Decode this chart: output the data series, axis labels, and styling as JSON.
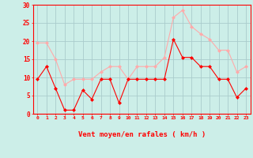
{
  "x": [
    0,
    1,
    2,
    3,
    4,
    5,
    6,
    7,
    8,
    9,
    10,
    11,
    12,
    13,
    14,
    15,
    16,
    17,
    18,
    19,
    20,
    21,
    22,
    23
  ],
  "wind_avg": [
    9.5,
    13,
    7,
    1,
    1,
    6.5,
    4,
    9.5,
    9.5,
    3,
    9.5,
    9.5,
    9.5,
    9.5,
    9.5,
    20.5,
    15.5,
    15.5,
    13,
    13,
    9.5,
    9.5,
    4.5,
    7
  ],
  "wind_gust": [
    19.5,
    19.5,
    15,
    8,
    9.5,
    9.5,
    9.5,
    11.5,
    13,
    13,
    9.5,
    13,
    13,
    13,
    15.5,
    26.5,
    28.5,
    24,
    22,
    20.5,
    17.5,
    17.5,
    11.5,
    13
  ],
  "avg_color": "#ff0000",
  "gust_color": "#ffaaaa",
  "bg_color": "#cceee8",
  "grid_color": "#aacccc",
  "xlabel": "Vent moyen/en rafales ( km/h )",
  "ylim": [
    0,
    30
  ],
  "yticks": [
    0,
    5,
    10,
    15,
    20,
    25,
    30
  ],
  "xlim": [
    -0.5,
    23.5
  ],
  "tick_color": "#ff0000",
  "axis_color": "#ff0000",
  "title_color": "#ff0000"
}
